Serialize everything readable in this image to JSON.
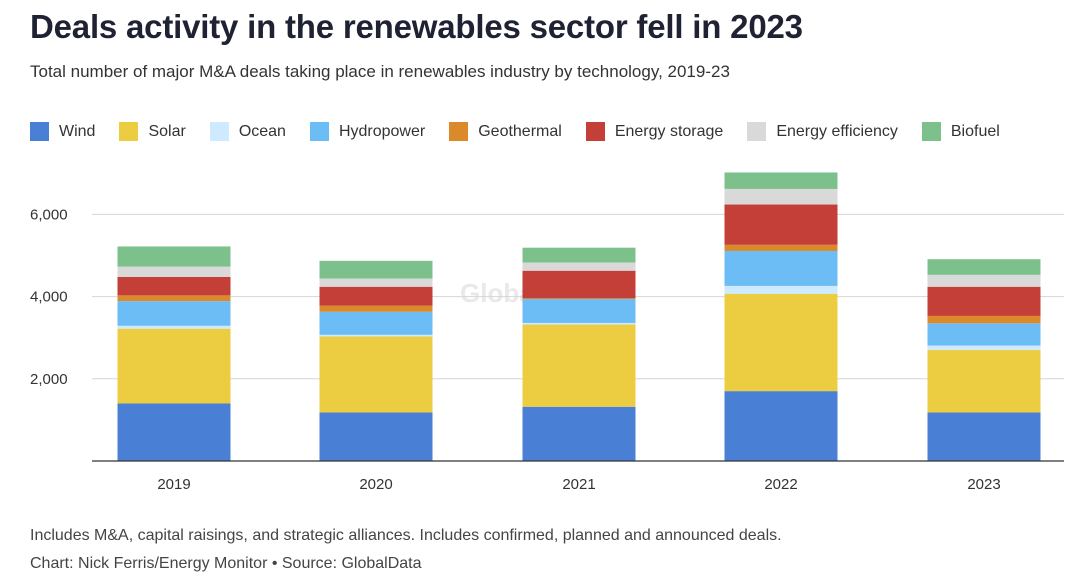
{
  "chart_data": {
    "type": "bar",
    "stacked": true,
    "title": "Deals activity in the renewables sector fell in 2023",
    "subtitle": "Total number of major M&A deals taking place in renewables industry by technology, 2019-23",
    "categories": [
      "2019",
      "2020",
      "2021",
      "2022",
      "2023"
    ],
    "ylim": [
      0,
      7000
    ],
    "yticks": [
      2000,
      4000,
      6000
    ],
    "ytick_labels": [
      "2,000",
      "4,000",
      "6,000"
    ],
    "grid": true,
    "legend_position": "top",
    "series": [
      {
        "name": "Wind",
        "color": "#4a7fd6",
        "values": [
          1400,
          1180,
          1320,
          1700,
          1180
        ]
      },
      {
        "name": "Solar",
        "color": "#eccc41",
        "values": [
          1820,
          1850,
          2000,
          2370,
          1520
        ]
      },
      {
        "name": "Ocean",
        "color": "#cdeaff",
        "values": [
          70,
          40,
          40,
          190,
          110
        ]
      },
      {
        "name": "Hydropower",
        "color": "#6cbcf6",
        "values": [
          600,
          560,
          580,
          850,
          540
        ]
      },
      {
        "name": "Geothermal",
        "color": "#da8a2b",
        "values": [
          140,
          150,
          20,
          150,
          180
        ]
      },
      {
        "name": "Energy storage",
        "color": "#c33f37",
        "values": [
          450,
          460,
          670,
          980,
          710
        ]
      },
      {
        "name": "Energy efficiency",
        "color": "#d9d9d9",
        "values": [
          250,
          200,
          200,
          380,
          290
        ]
      },
      {
        "name": "Biofuel",
        "color": "#7cc18c",
        "values": [
          490,
          430,
          360,
          400,
          380
        ]
      }
    ]
  },
  "watermark": "GlobalData",
  "footer": {
    "note": "Includes M&A, capital raisings, and strategic alliances. Includes confirmed, planned and announced deals.",
    "credit": "Chart: Nick Ferris/Energy Monitor • Source: GlobalData"
  }
}
